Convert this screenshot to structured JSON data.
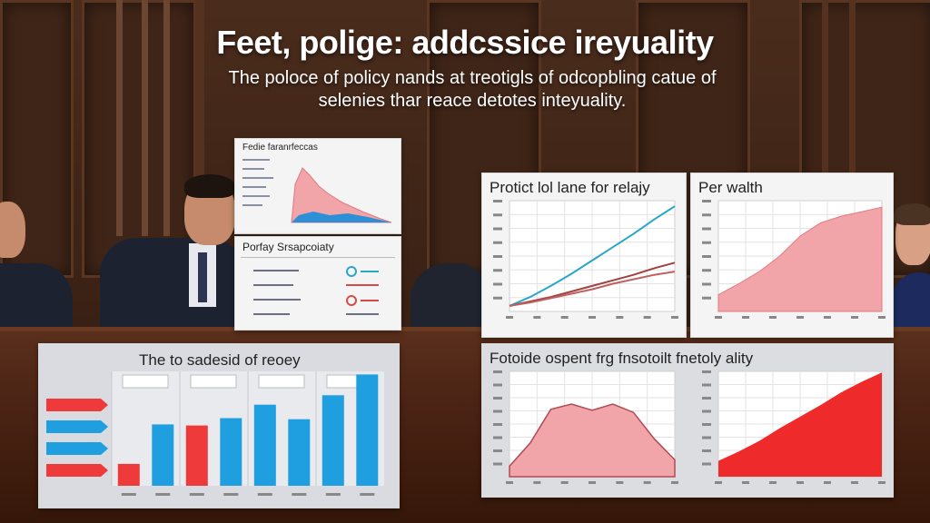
{
  "title": "Feet, polige: addcssice ireyuality",
  "subtitle_lines": [
    "The poloce of policy nands at treotigls of odcopbling catue of",
    "selenies thar reace detotes inteyuality."
  ],
  "cards": {
    "top_small": {
      "title": "Fedie faranrfeccas"
    },
    "top_table": {
      "title": "Porfay Srsapcoiaty"
    },
    "line_chart": {
      "title": "Protict lol lane for relajy"
    },
    "wealth_chart": {
      "title": "Per walth"
    },
    "bar_chart": {
      "title": "The to sadesid of reoey"
    },
    "peak_chart": {
      "title": "Fotoide ospent frg fnsotoilt fnetoly ality"
    }
  },
  "colors": {
    "pink_fill": "#f2a5a8",
    "red_fill": "#ee2a2a",
    "blue_bar": "#1f9fe0",
    "teal_line": "#2aa6c9",
    "maroon_line": "#a34040"
  },
  "chart_data": [
    {
      "type": "line",
      "title": "Protict lol lane for relajy",
      "x": [
        0,
        1,
        2,
        3,
        4,
        5,
        6,
        7,
        8
      ],
      "series": [
        {
          "values": [
            0.5,
            1.3,
            2.3,
            3.4,
            4.6,
            5.8,
            7.0,
            8.3,
            9.5
          ]
        },
        {
          "values": [
            0.5,
            0.9,
            1.3,
            1.8,
            2.3,
            2.8,
            3.3,
            3.9,
            4.4
          ]
        },
        {
          "values": [
            0.5,
            0.8,
            1.2,
            1.6,
            2.0,
            2.5,
            2.9,
            3.3,
            3.6
          ]
        }
      ],
      "ylim": [
        0,
        10
      ]
    },
    {
      "type": "area",
      "title": "Per walth",
      "x": [
        0,
        1,
        2,
        3,
        4,
        5,
        6,
        7,
        8
      ],
      "values": [
        1.5,
        2.5,
        3.6,
        5.0,
        6.8,
        8.0,
        8.6,
        9.0,
        9.4
      ],
      "ylim": [
        0,
        10
      ]
    },
    {
      "type": "bar",
      "title": "The to sadesid of reoey",
      "values": [
        2.1,
        5.9,
        5.8,
        6.5,
        7.8,
        6.4,
        8.7,
        10.7
      ],
      "ylim": [
        0,
        11
      ]
    },
    {
      "type": "area",
      "title": "Fotoide ospent frg fnsotoilt fnetoly ality",
      "x": [
        0,
        1,
        2,
        3,
        4,
        5,
        6,
        7,
        8
      ],
      "values": [
        1.0,
        3.2,
        6.4,
        6.9,
        6.3,
        6.9,
        6.1,
        3.6,
        1.6
      ],
      "ylim": [
        0,
        10
      ]
    },
    {
      "type": "area",
      "title": "",
      "x": [
        0,
        1,
        2,
        3,
        4,
        5,
        6,
        7,
        8
      ],
      "values": [
        1.5,
        2.4,
        3.4,
        4.6,
        5.7,
        6.8,
        8.0,
        9.0,
        9.9
      ],
      "ylim": [
        0,
        10
      ]
    }
  ]
}
